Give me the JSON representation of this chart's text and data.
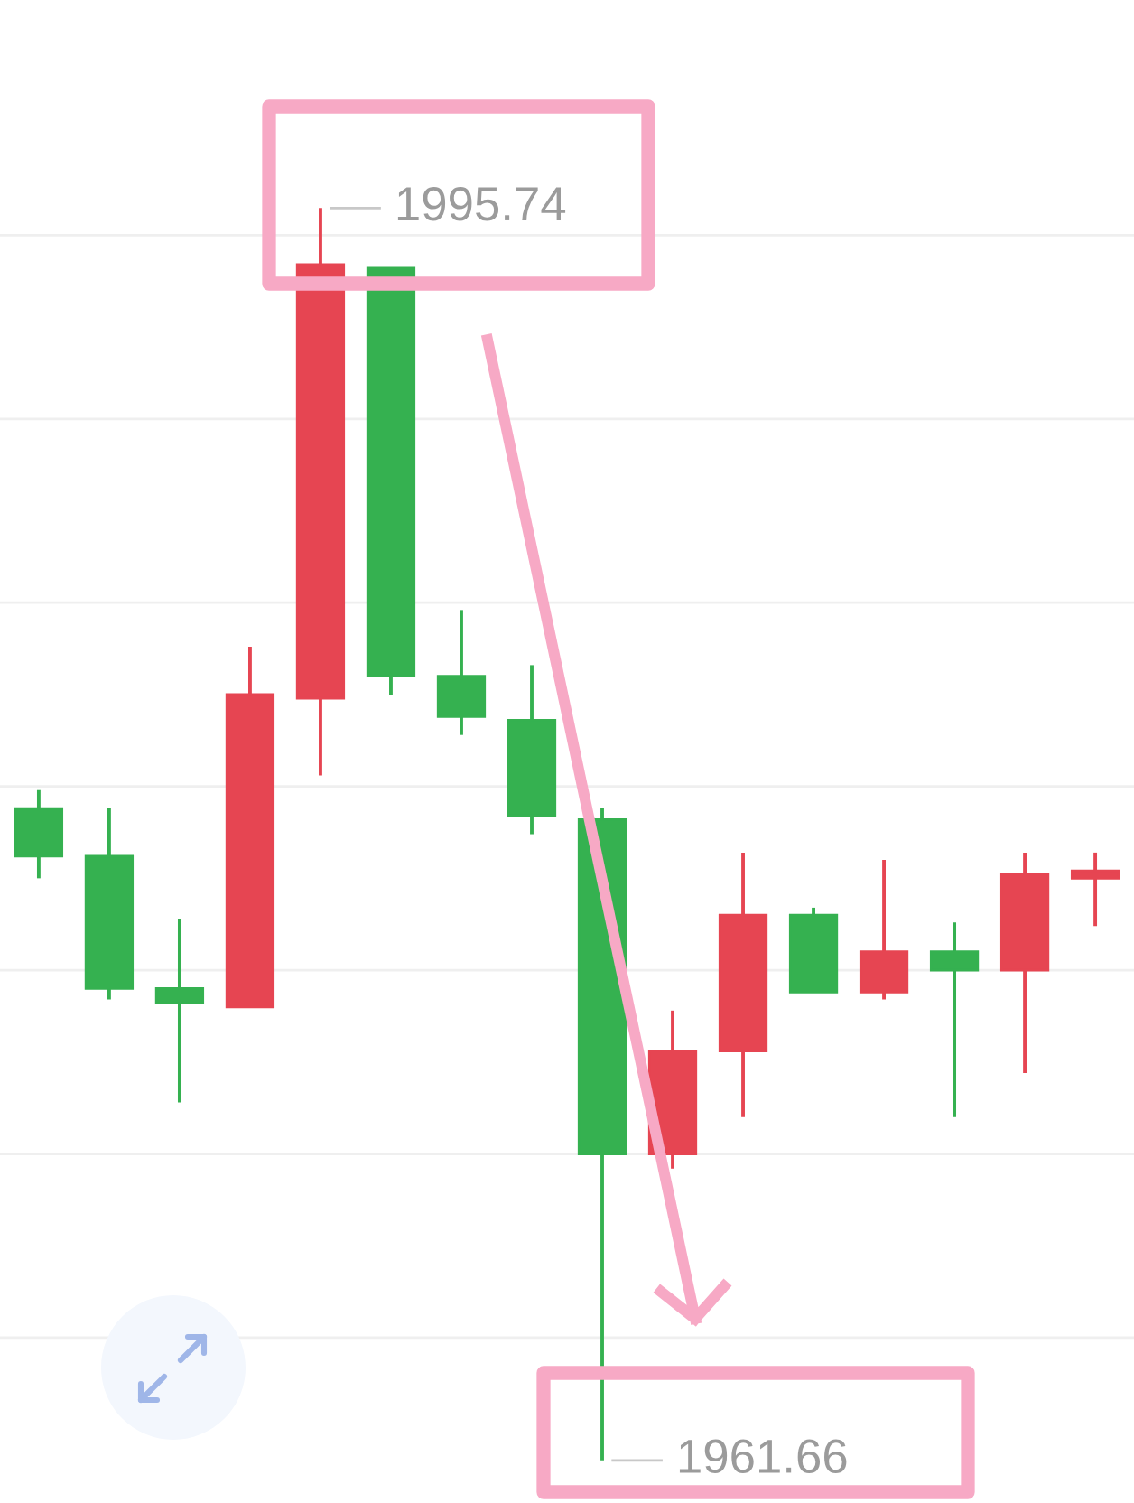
{
  "chart_data": {
    "type": "candlestick",
    "categories": [
      null,
      null,
      null,
      null,
      null,
      null,
      null,
      null,
      null,
      null,
      null,
      null,
      null,
      null,
      null,
      null
    ],
    "ohlc": [
      [
        1979.4,
        1979.9,
        1977.5,
        1978.1
      ],
      [
        1978.1,
        1979.4,
        1974.2,
        1974.5
      ],
      [
        1974.5,
        1976.4,
        1971.4,
        1974.1
      ],
      [
        1974.0,
        1983.8,
        1974.0,
        1982.5
      ],
      [
        1982.4,
        1995.74,
        1980.3,
        1994.2
      ],
      [
        1994.1,
        1994.1,
        1982.5,
        1983.0
      ],
      [
        1983.0,
        1984.8,
        1981.4,
        1981.9
      ],
      [
        1981.8,
        1983.3,
        1978.7,
        1979.2
      ],
      [
        1979.1,
        1979.4,
        1961.66,
        1970.0
      ],
      [
        1970.0,
        1973.9,
        1969.6,
        1972.8
      ],
      [
        1972.8,
        1978.2,
        1971.0,
        1976.5
      ],
      [
        1976.5,
        1976.7,
        1974.4,
        1974.4
      ],
      [
        1974.4,
        1978.0,
        1974.2,
        1975.5
      ],
      [
        1975.5,
        1976.3,
        1971.0,
        1975.0
      ],
      [
        1975.0,
        1978.2,
        1972.2,
        1977.6
      ],
      [
        1977.5,
        1978.2,
        1976.2,
        1977.7
      ]
    ],
    "colors": [
      "#35b150",
      "#35b150",
      "#35b150",
      "#e64552",
      "#e64552",
      "#35b150",
      "#35b150",
      "#35b150",
      "#35b150",
      "#e64552",
      "#e64552",
      "#35b150",
      "#e64552",
      "#35b150",
      "#e64552",
      "#e64552"
    ],
    "ylim": [
      1960.5,
      2001.4
    ],
    "yticks": [
      {
        "value": 1965,
        "label": null
      },
      {
        "value": 1970,
        "label": null
      },
      {
        "value": 1975,
        "label": null
      },
      {
        "value": 1980,
        "label": null
      },
      {
        "value": 1985,
        "label": null
      },
      {
        "value": 1990,
        "label": null
      },
      {
        "value": 1995,
        "label": null
      }
    ],
    "grid": "y",
    "annotations": [
      "1995.74",
      "1961.66"
    ]
  }
}
